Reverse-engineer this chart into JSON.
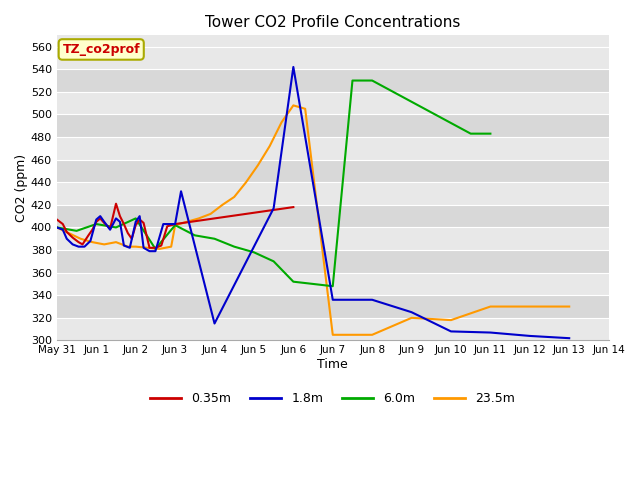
{
  "title": "Tower CO2 Profile Concentrations",
  "xlabel": "Time",
  "ylabel": "CO2 (ppm)",
  "ylim": [
    300,
    570
  ],
  "yticks": [
    300,
    320,
    340,
    360,
    380,
    400,
    420,
    440,
    460,
    480,
    500,
    520,
    540,
    560
  ],
  "legend_label": "TZ_co2prof",
  "legend_text_color": "#cc0000",
  "legend_bg": "#ffffcc",
  "legend_border": "#aaaa00",
  "series": {
    "0.35m": {
      "color": "#cc0000",
      "x": [
        0,
        0.15,
        0.25,
        0.4,
        0.55,
        0.65,
        0.8,
        0.9,
        1.0,
        1.1,
        1.2,
        1.35,
        1.5,
        1.6,
        1.7,
        1.8,
        1.9,
        2.0,
        2.1,
        2.2,
        2.35,
        2.5,
        2.65,
        2.8,
        3.0,
        6.0
      ],
      "y": [
        407,
        403,
        396,
        391,
        387,
        385,
        393,
        398,
        405,
        408,
        404,
        399,
        421,
        410,
        403,
        395,
        390,
        402,
        407,
        404,
        382,
        382,
        384,
        401,
        403,
        418
      ]
    },
    "1.8m": {
      "color": "#0000cc",
      "x": [
        0,
        0.15,
        0.25,
        0.4,
        0.55,
        0.7,
        0.85,
        1.0,
        1.1,
        1.2,
        1.35,
        1.5,
        1.6,
        1.7,
        1.85,
        2.0,
        2.1,
        2.2,
        2.35,
        2.5,
        2.7,
        3.0,
        3.15,
        4.0,
        5.5,
        6.0,
        7.0,
        8.0,
        9.0,
        10.0,
        11.0,
        12.0,
        13.0
      ],
      "y": [
        400,
        398,
        390,
        385,
        383,
        383,
        388,
        407,
        410,
        405,
        398,
        408,
        405,
        384,
        382,
        405,
        410,
        382,
        379,
        379,
        403,
        403,
        432,
        315,
        417,
        542,
        336,
        336,
        325,
        308,
        307,
        304,
        302
      ]
    },
    "6.0m": {
      "color": "#00aa00",
      "x": [
        0,
        0.5,
        1.0,
        1.5,
        2.0,
        2.5,
        3.0,
        3.5,
        4.0,
        4.5,
        5.0,
        5.5,
        6.0,
        6.5,
        7.0,
        7.5,
        8.0,
        10.5,
        11.0
      ],
      "y": [
        400,
        397,
        403,
        400,
        408,
        381,
        402,
        393,
        390,
        383,
        378,
        370,
        352,
        350,
        348,
        530,
        530,
        483,
        483
      ]
    },
    "23.5m": {
      "color": "#ff9900",
      "x": [
        0,
        0.3,
        0.6,
        0.9,
        1.2,
        1.5,
        1.8,
        2.0,
        2.3,
        2.6,
        2.9,
        3.0,
        3.3,
        3.6,
        3.9,
        4.2,
        4.5,
        4.8,
        5.1,
        5.4,
        5.7,
        6.0,
        6.3,
        7.0,
        8.0,
        9.0,
        10.0,
        11.0,
        12.0,
        13.0
      ],
      "y": [
        400,
        395,
        390,
        387,
        385,
        387,
        383,
        383,
        382,
        381,
        383,
        402,
        405,
        408,
        412,
        420,
        427,
        440,
        455,
        472,
        493,
        508,
        505,
        305,
        305,
        320,
        318,
        330,
        330,
        330
      ]
    }
  },
  "xtick_labels": [
    "May 31",
    "Jun 1",
    "Jun 2",
    "Jun 3",
    "Jun 4",
    "Jun 5",
    "Jun 6",
    "Jun 7",
    "Jun 8",
    "Jun 9",
    "Jun 10",
    "Jun 11",
    "Jun 12",
    "Jun 13",
    "Jun 14"
  ],
  "xtick_positions": [
    0,
    1,
    2,
    3,
    4,
    5,
    6,
    7,
    8,
    9,
    10,
    11,
    12,
    13,
    14
  ],
  "band_colors": [
    "#e8e8e8",
    "#d8d8d8"
  ]
}
